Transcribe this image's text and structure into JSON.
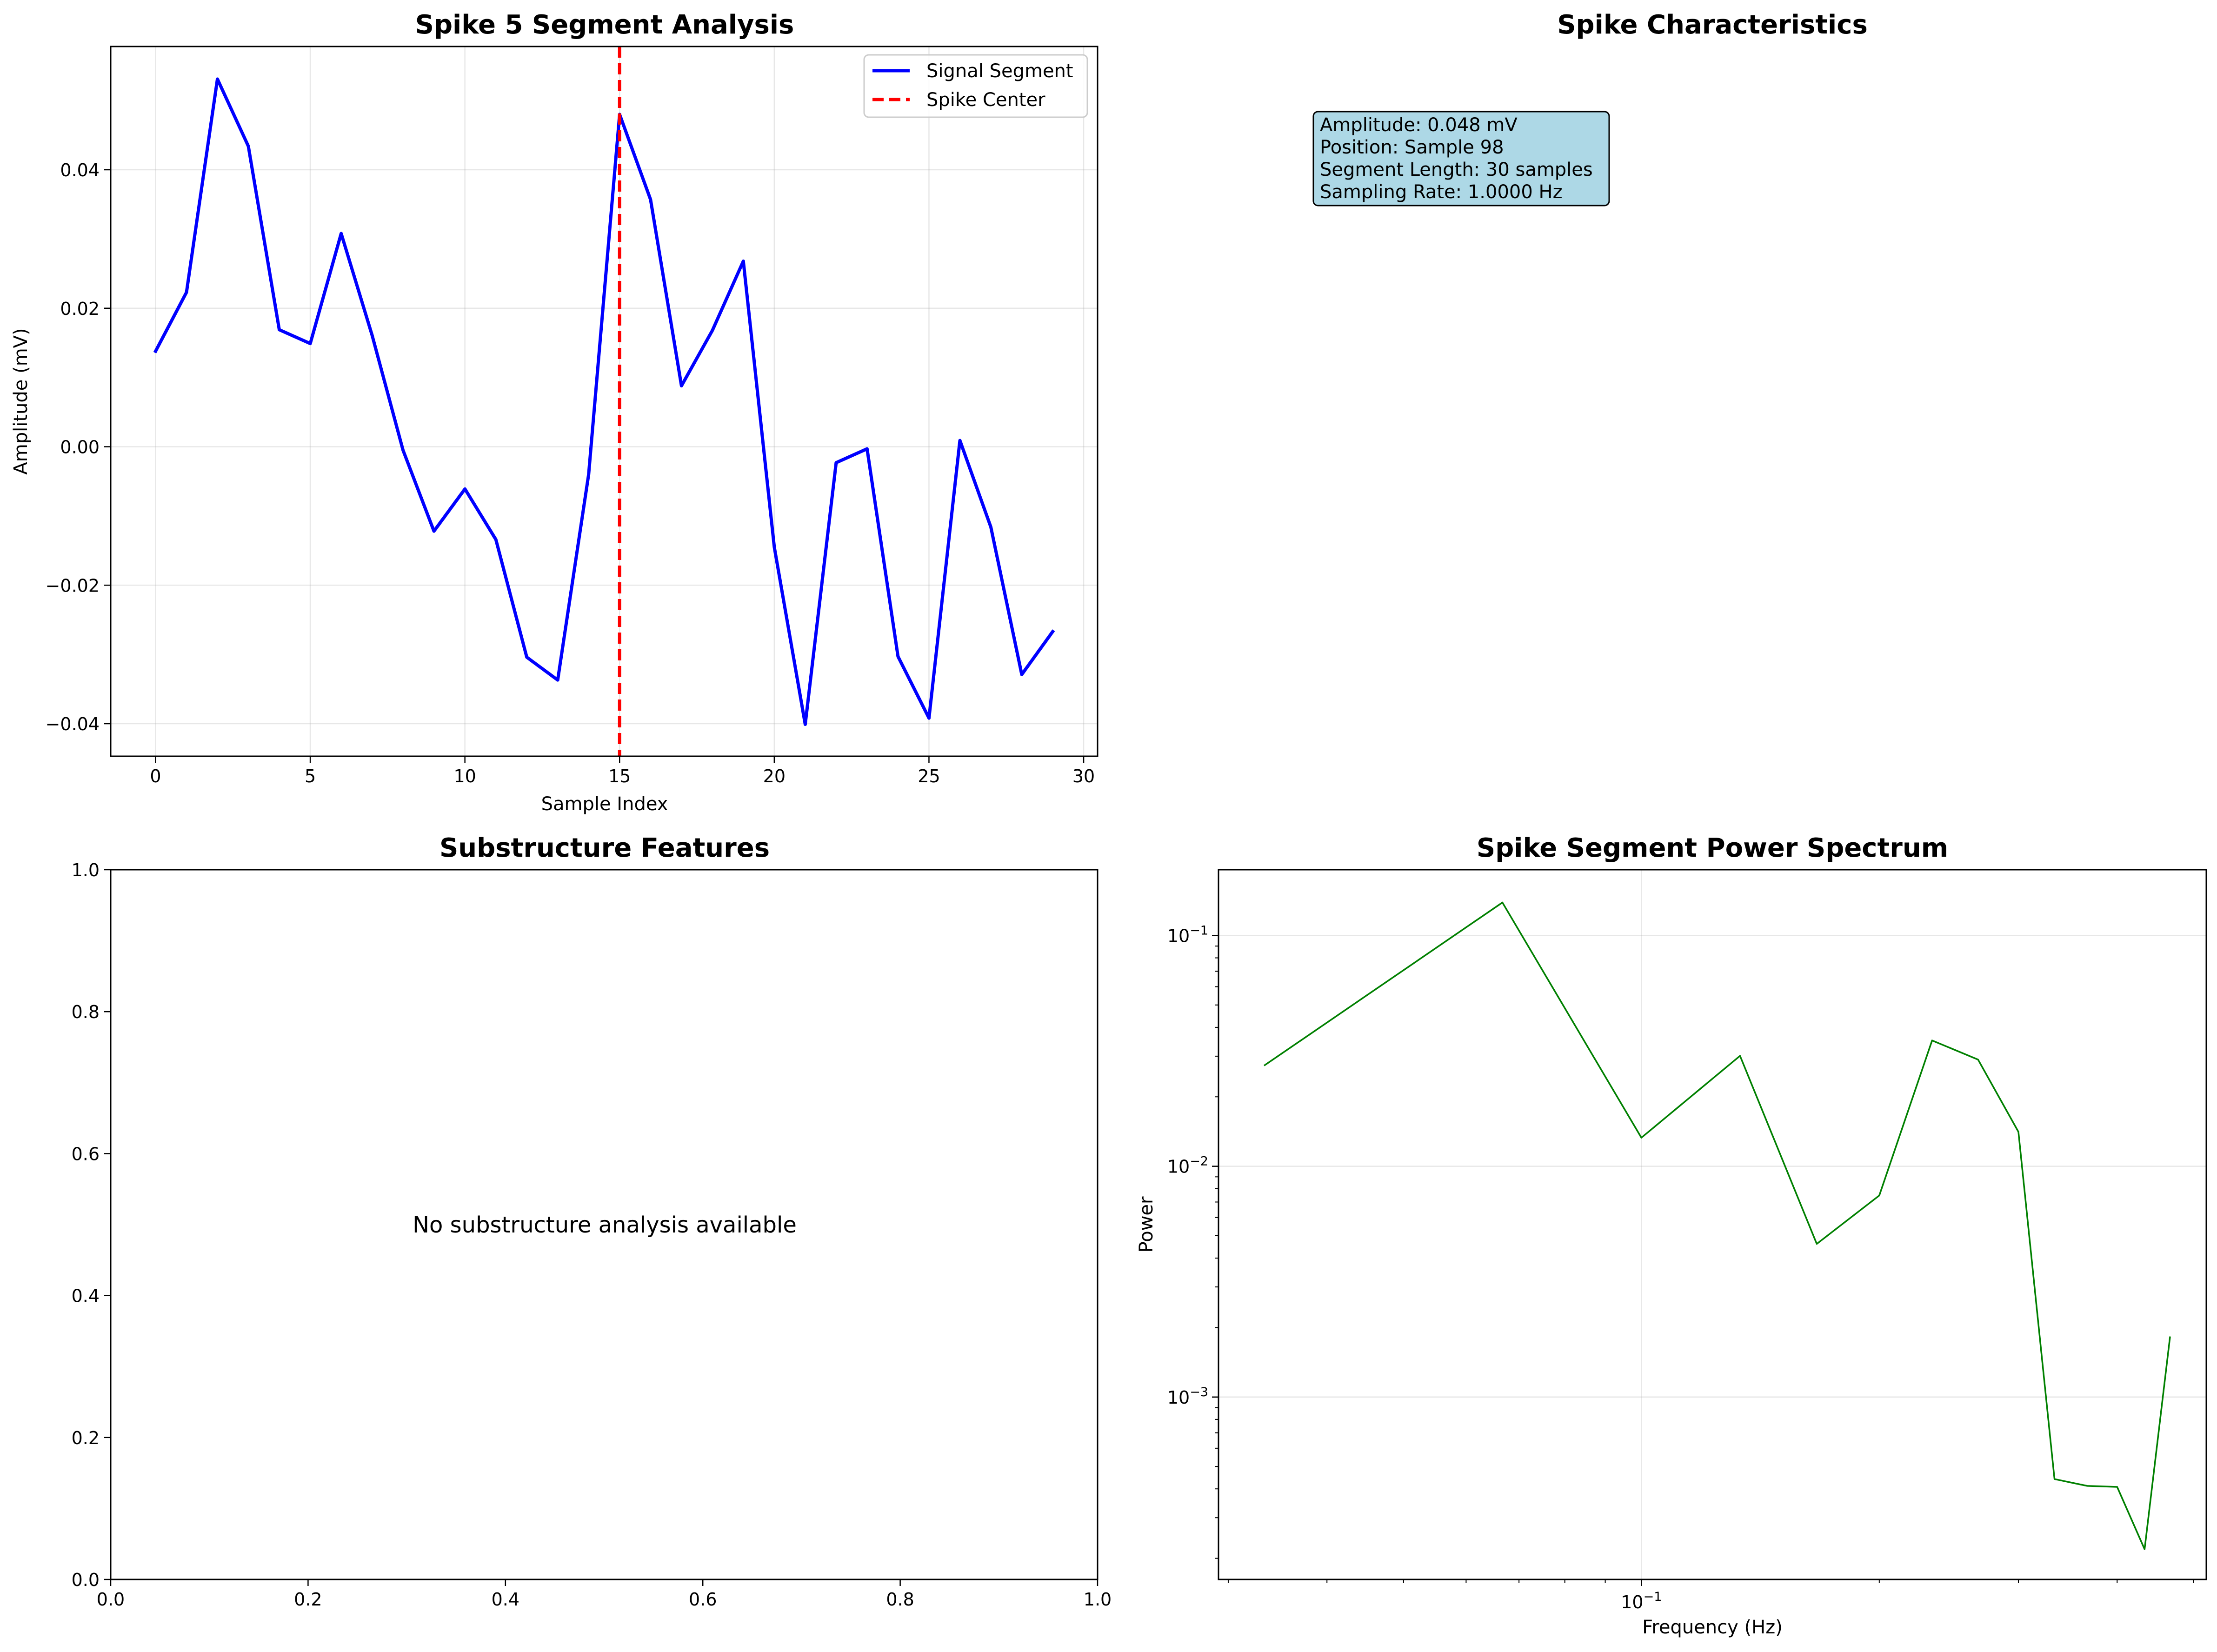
{
  "chart_data": [
    {
      "type": "line",
      "title": "Spike 5 Segment Analysis",
      "xlabel": "Sample Index",
      "ylabel": "Amplitude (mV)",
      "xlim": [
        -1.45,
        30.45
      ],
      "ylim": [
        -0.0447,
        0.0578
      ],
      "grid": true,
      "legend_position": "top-right",
      "xticks": [
        0,
        5,
        10,
        15,
        20,
        25,
        30
      ],
      "xtick_labels": [
        "0",
        "5",
        "10",
        "15",
        "20",
        "25",
        "30"
      ],
      "yticks": [
        -0.04,
        -0.02,
        0.0,
        0.02,
        0.04
      ],
      "ytick_labels": [
        "−0.04",
        "−0.02",
        "0.00",
        "0.02",
        "0.04"
      ],
      "series": [
        {
          "name": "Signal Segment",
          "color": "#0000ff",
          "style": "solid",
          "x": [
            0,
            1,
            2,
            3,
            4,
            5,
            6,
            7,
            8,
            9,
            10,
            11,
            12,
            13,
            14,
            15,
            16,
            17,
            18,
            19,
            20,
            21,
            22,
            23,
            24,
            25,
            26,
            27,
            28,
            29
          ],
          "y": [
            0.0138,
            0.0223,
            0.0531,
            0.0434,
            0.0169,
            0.0149,
            0.0308,
            0.0161,
            -0.0005,
            -0.0122,
            -0.0061,
            -0.0134,
            -0.0304,
            -0.0337,
            -0.004,
            0.048,
            0.0357,
            0.0088,
            0.0168,
            0.0268,
            -0.0145,
            -0.0401,
            -0.0023,
            -0.0003,
            -0.0303,
            -0.0392,
            0.0009,
            -0.0116,
            -0.0329,
            -0.0267
          ]
        },
        {
          "name": "Spike Center",
          "color": "#ff0000",
          "style": "dashed",
          "vline_x": 15
        }
      ]
    },
    {
      "type": "table",
      "title": "Spike Characteristics",
      "info_lines": [
        "Amplitude: 0.048 mV",
        "Position: Sample 98",
        "Segment Length: 30 samples",
        "Sampling Rate: 1.0000 Hz"
      ],
      "box_color": "#add8e6"
    },
    {
      "type": "scatter",
      "title": "Substructure Features",
      "xlim": [
        0,
        1
      ],
      "ylim": [
        0,
        1
      ],
      "xticks": [
        0,
        0.2,
        0.4,
        0.6,
        0.8,
        1.0
      ],
      "xtick_labels": [
        "0.0",
        "0.2",
        "0.4",
        "0.6",
        "0.8",
        "1.0"
      ],
      "yticks": [
        0,
        0.2,
        0.4,
        0.6,
        0.8,
        1.0
      ],
      "ytick_labels": [
        "0.0",
        "0.2",
        "0.4",
        "0.6",
        "0.8",
        "1.0"
      ],
      "annotation": "No substructure analysis available",
      "series": []
    },
    {
      "type": "line",
      "title": "Spike Segment Power Spectrum",
      "xlabel": "Frequency (Hz)",
      "ylabel": "Power",
      "xscale": "log",
      "yscale": "log",
      "xlim": [
        0.02916,
        0.5187
      ],
      "ylim": [
        0.000162,
        0.1928
      ],
      "grid": true,
      "xticks": [
        0.1
      ],
      "xtick_labels_base": [
        "10"
      ],
      "xtick_labels_exp": [
        "−1"
      ],
      "yticks": [
        0.001,
        0.01,
        0.1
      ],
      "ytick_labels_base": [
        "10",
        "10",
        "10"
      ],
      "ytick_labels_exp": [
        "−3",
        "−2",
        "−1"
      ],
      "series": [
        {
          "color": "#008000",
          "style": "solid",
          "x": [
            0.0333,
            0.0667,
            0.1,
            0.1333,
            0.1667,
            0.2,
            0.2333,
            0.2667,
            0.3,
            0.3333,
            0.3667,
            0.4,
            0.4333,
            0.4667
          ],
          "y": [
            0.0273,
            0.139,
            0.0133,
            0.0301,
            0.00461,
            0.00747,
            0.0351,
            0.029,
            0.0141,
            0.000441,
            0.000412,
            0.000408,
            0.000219,
            0.00183
          ]
        }
      ]
    }
  ]
}
